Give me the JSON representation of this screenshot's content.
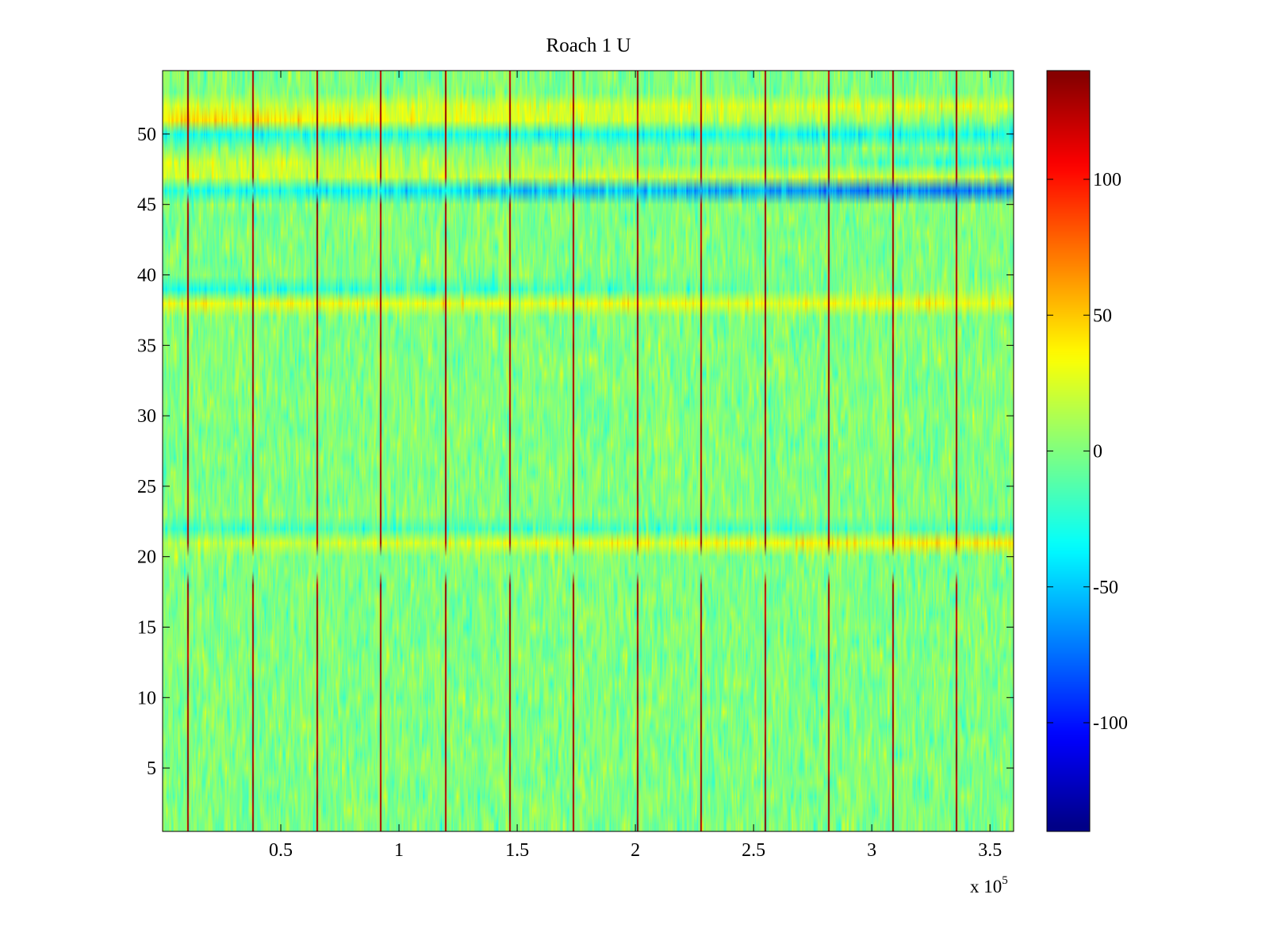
{
  "chart_data": {
    "type": "heatmap",
    "title": "Roach 1 U",
    "xlabel": "",
    "ylabel": "",
    "xlim": [
      0,
      360000
    ],
    "ylim": [
      0.5,
      54.5
    ],
    "x_ticks": [
      0.5,
      1,
      1.5,
      2,
      2.5,
      3,
      3.5
    ],
    "x_tick_labels": [
      "0.5",
      "1",
      "1.5",
      "2",
      "2.5",
      "3",
      "3.5"
    ],
    "x_scale_multiplier": {
      "prefix": "x 10",
      "exponent": "5"
    },
    "y_ticks": [
      5,
      10,
      15,
      20,
      25,
      30,
      35,
      40,
      45,
      50
    ],
    "y_tick_labels": [
      "5",
      "10",
      "15",
      "20",
      "25",
      "30",
      "35",
      "40",
      "45",
      "50"
    ],
    "rows": 54,
    "colorbar": {
      "colormap": "jet",
      "range": [
        -140,
        140
      ],
      "ticks": [
        -100,
        -50,
        0,
        50,
        100
      ],
      "tick_labels": [
        "-100",
        "-50",
        "0",
        "50",
        "100"
      ]
    },
    "spike_columns_x": [
      10500,
      38000,
      65000,
      92000,
      119500,
      146500,
      173500,
      200500,
      227500,
      254500,
      281500,
      308500,
      335500
    ],
    "spike_value": 130,
    "spike_gap_rows": [
      [
        19,
        20
      ],
      [
        46,
        46
      ]
    ],
    "row_offsets": [
      {
        "row": 51,
        "value": 25
      },
      {
        "row": 52,
        "value": 22
      },
      {
        "row": 47,
        "value": 20
      },
      {
        "row": 48,
        "value": 15
      },
      {
        "row": 46,
        "value": -35
      },
      {
        "row": 50,
        "value": -30
      },
      {
        "row": 38,
        "value": 30
      },
      {
        "row": 39,
        "value": -20
      },
      {
        "row": 21,
        "value": 15
      },
      {
        "row": 22,
        "value": -15
      }
    ],
    "row_trends": [
      {
        "row": 39,
        "start": -10,
        "end": 25
      },
      {
        "row": 46,
        "start": 10,
        "end": -40
      },
      {
        "row": 48,
        "start": 10,
        "end": -35
      },
      {
        "row": 51,
        "start": 20,
        "end": -25
      },
      {
        "row": 21,
        "start": 0,
        "end": 25
      }
    ],
    "noise_std": 14
  }
}
